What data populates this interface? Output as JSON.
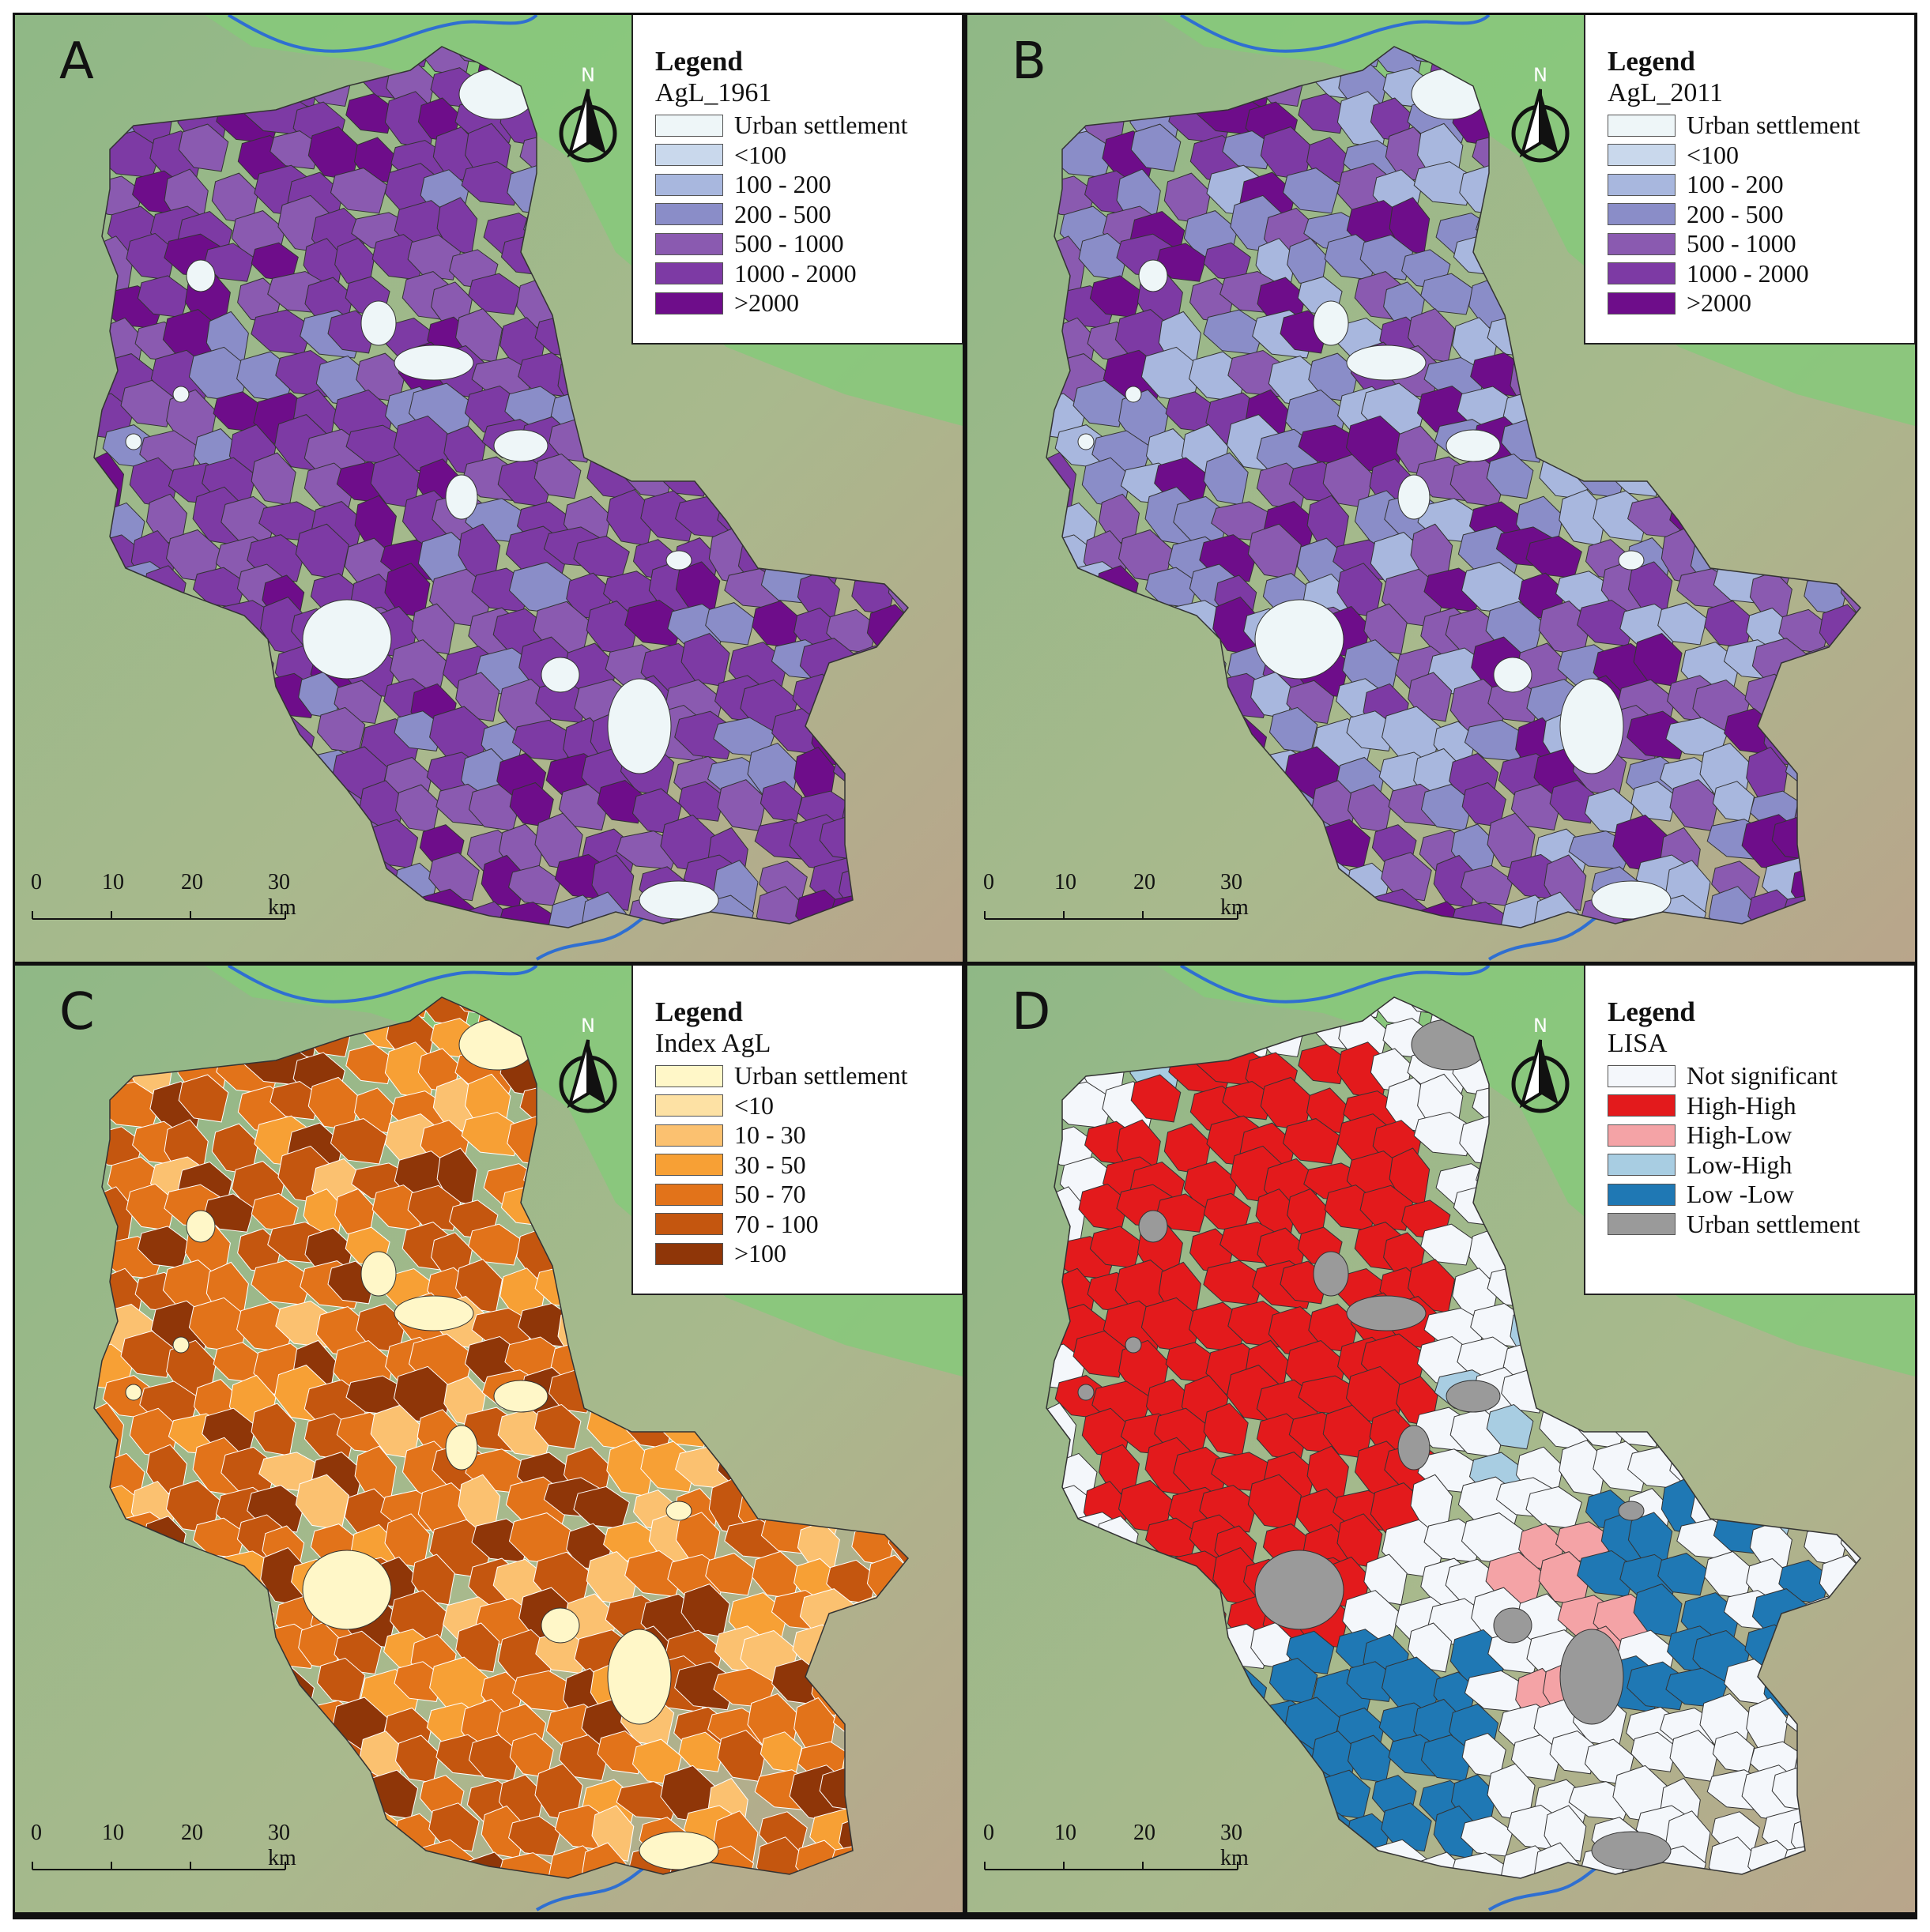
{
  "panels": [
    {
      "id": "A",
      "legend": {
        "title": "Legend",
        "subtitle": "AgL_1961",
        "items": [
          {
            "label": "Urban settlement",
            "color": "#eef6f8"
          },
          {
            "label": "<100",
            "color": "#c9d8ec"
          },
          {
            "label": "100 - 200",
            "color": "#a8b7de"
          },
          {
            "label": "200 - 500",
            "color": "#8a8dc8"
          },
          {
            "label": "500 - 1000",
            "color": "#8a5ab0"
          },
          {
            "label": "1000 - 2000",
            "color": "#7d3aa4"
          },
          {
            "label": ">2000",
            "color": "#6e0d8a"
          }
        ]
      },
      "palette": [
        "#7d3aa4",
        "#8a5ab0",
        "#7d3aa4",
        "#6e0d8a",
        "#8a5ab0",
        "#7d3aa4",
        "#8a8dc8",
        "#7d3aa4"
      ]
    },
    {
      "id": "B",
      "legend": {
        "title": "Legend",
        "subtitle": "AgL_2011",
        "items": [
          {
            "label": "Urban settlement",
            "color": "#eef6f8"
          },
          {
            "label": "<100",
            "color": "#c9d8ec"
          },
          {
            "label": "100 - 200",
            "color": "#a8b7de"
          },
          {
            "label": "200 - 500",
            "color": "#8a8dc8"
          },
          {
            "label": "500 - 1000",
            "color": "#8a5ab0"
          },
          {
            "label": "1000 - 2000",
            "color": "#7d3aa4"
          },
          {
            "label": ">2000",
            "color": "#6e0d8a"
          }
        ]
      },
      "palette": [
        "#8a8dc8",
        "#8a5ab0",
        "#a8b7de",
        "#7d3aa4",
        "#8a8dc8",
        "#8a5ab0",
        "#a8b7de",
        "#6e0d8a"
      ]
    },
    {
      "id": "C",
      "legend": {
        "title": "Legend",
        "subtitle": "Index AgL",
        "items": [
          {
            "label": "Urban settlement",
            "color": "#fff7c8"
          },
          {
            "label": "<10",
            "color": "#fde1a4"
          },
          {
            "label": "10 - 30",
            "color": "#fbc170"
          },
          {
            "label": "30 - 50",
            "color": "#f7a035"
          },
          {
            "label": "50 - 70",
            "color": "#e2731a"
          },
          {
            "label": "70 - 100",
            "color": "#c4560f"
          },
          {
            "label": ">100",
            "color": "#8f3608"
          }
        ]
      },
      "palette": [
        "#e2731a",
        "#c4560f",
        "#f7a035",
        "#e2731a",
        "#c4560f",
        "#fbc170",
        "#e2731a",
        "#8f3608"
      ]
    },
    {
      "id": "D",
      "legend": {
        "title": "Legend",
        "subtitle": "LISA",
        "items": [
          {
            "label": "Not significant",
            "color": "#f4f7fb"
          },
          {
            "label": "High-High",
            "color": "#e31a1c"
          },
          {
            "label": "High-Low",
            "color": "#f4a3a6"
          },
          {
            "label": "Low-High",
            "color": "#a8cde2"
          },
          {
            "label": "Low -Low",
            "color": "#1f78b4"
          },
          {
            "label": "Urban settlement",
            "color": "#9a9a9a"
          }
        ]
      },
      "palette": [
        "#f4f7fb",
        "#f4f7fb",
        "#f4f7fb",
        "#f4f7fb"
      ]
    }
  ],
  "north_label": "N",
  "scale": [
    "0",
    "10",
    "20",
    "30 km"
  ],
  "colors": {
    "terrain": "#8fb886",
    "terrain_dark": "#b9a58b",
    "lowland": "#86c97a",
    "river": "#2f6fd1"
  }
}
